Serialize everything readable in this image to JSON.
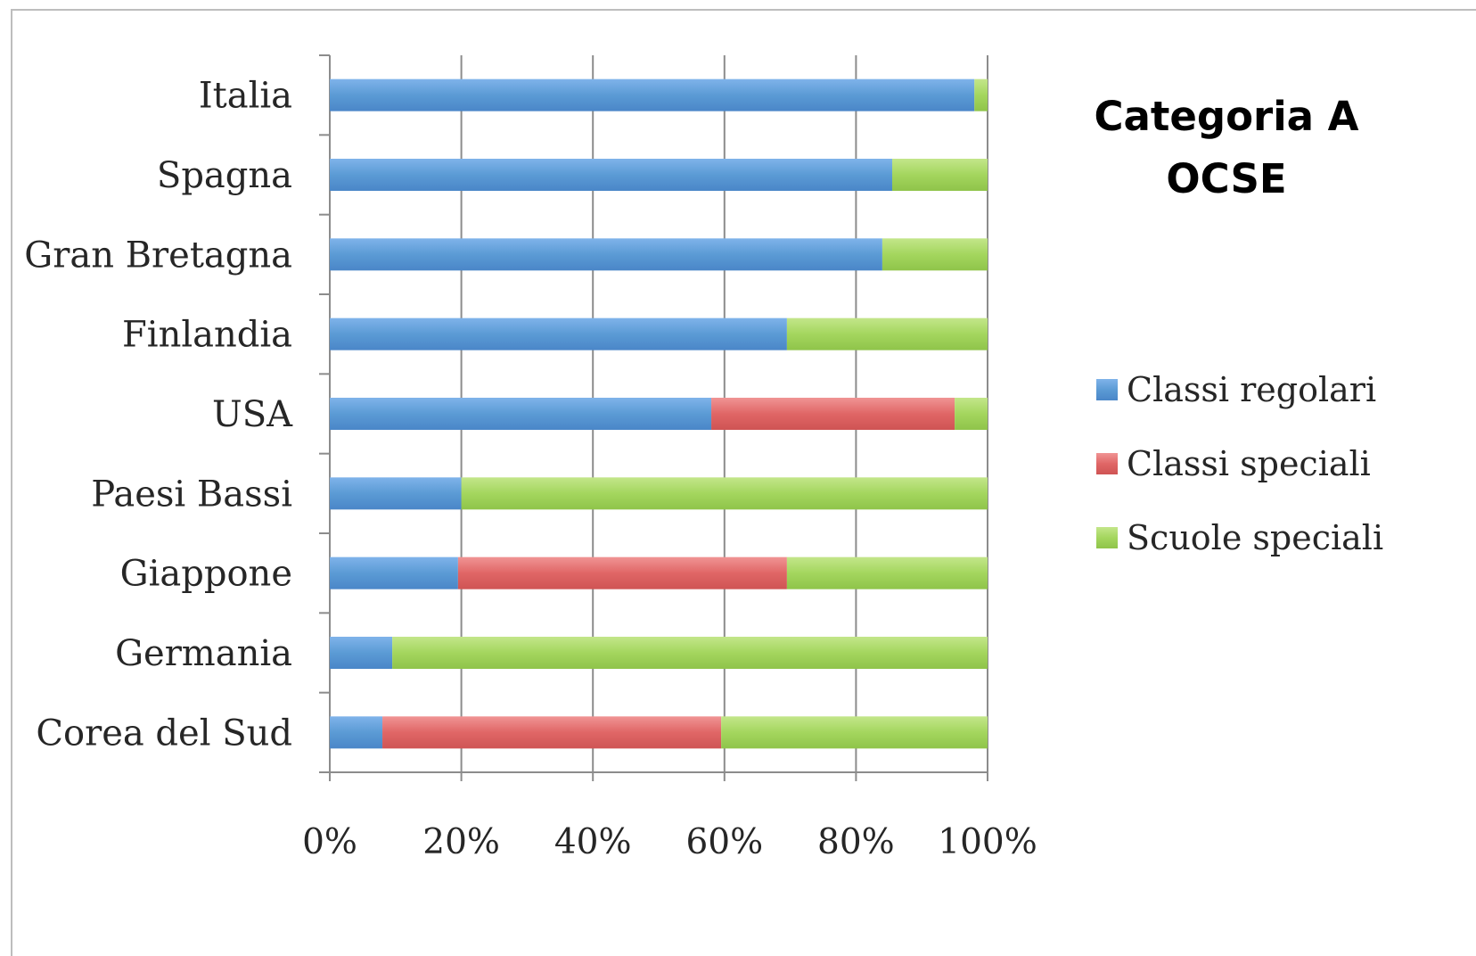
{
  "chart_data": {
    "type": "bar",
    "orientation": "horizontal",
    "stacked": true,
    "percent": true,
    "title": [
      "Categoria A",
      "OCSE"
    ],
    "categories": [
      "Italia",
      "Spagna",
      "Gran Bretagna",
      "Finlandia",
      "USA",
      "Paesi Bassi",
      "Giappone",
      "Germania",
      "Corea del Sud"
    ],
    "series": [
      {
        "name": "Classi regolari",
        "color": "#5b9bd5",
        "values": [
          98,
          85.5,
          84,
          69.5,
          58,
          20,
          19.5,
          9.5,
          8
        ]
      },
      {
        "name": "Classi speciali",
        "color": "#e06666",
        "values": [
          0,
          0,
          0,
          0,
          37,
          0,
          50,
          0,
          51.5
        ]
      },
      {
        "name": "Scuole speciali",
        "color": "#a4d65e",
        "values": [
          2,
          14.5,
          16,
          30.5,
          5,
          80,
          30.5,
          90.5,
          40.5
        ]
      }
    ],
    "xlim": [
      0,
      100
    ],
    "xticks": [
      "0%",
      "20%",
      "40%",
      "60%",
      "80%",
      "100%"
    ],
    "grid": "vertical",
    "legend_position": "right"
  }
}
